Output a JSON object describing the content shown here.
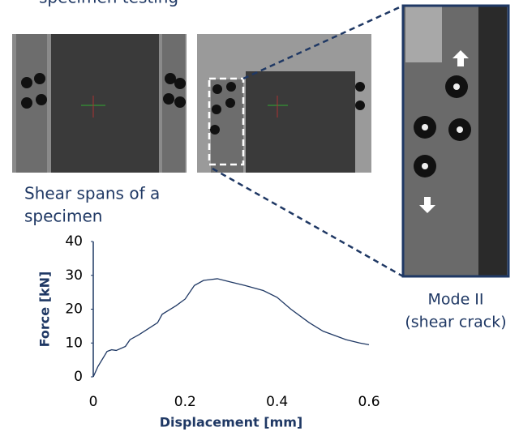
{
  "header": {
    "title": "specimen testing"
  },
  "left_caption": [
    "Shear spans of a",
    "specimen"
  ],
  "right_caption": [
    "Mode II",
    "(shear crack)"
  ],
  "chart_data": {
    "type": "line",
    "x_label": "Displacement [mm]",
    "y_label": "Force [kN]",
    "x": [
      0,
      0.01,
      0.03,
      0.04,
      0.05,
      0.07,
      0.08,
      0.1,
      0.14,
      0.15,
      0.18,
      0.2,
      0.22,
      0.24,
      0.27,
      0.3,
      0.33,
      0.37,
      0.4,
      0.43,
      0.47,
      0.5,
      0.55,
      0.58,
      0.6
    ],
    "values": [
      0,
      3,
      7.5,
      8,
      7.8,
      9,
      11,
      12.5,
      16,
      18.5,
      21,
      23,
      27,
      28.5,
      29,
      28,
      27,
      25.5,
      23.5,
      20,
      16,
      13.5,
      11,
      10,
      9.5
    ],
    "color": "#1f3864",
    "xlim": [
      0,
      0.6
    ],
    "xticks": [
      0,
      0.2,
      0.4,
      0.6
    ],
    "ylim": [
      0,
      40
    ],
    "yticks": [
      0,
      10,
      20,
      30,
      40
    ]
  }
}
